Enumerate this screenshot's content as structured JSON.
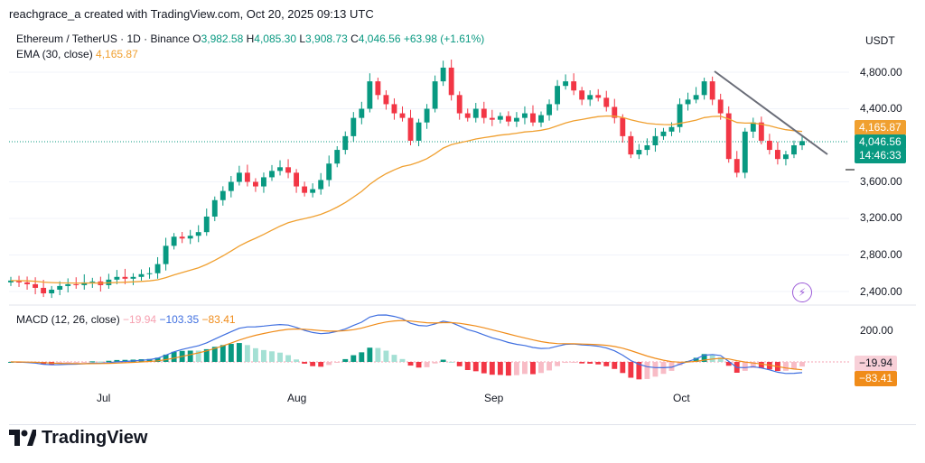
{
  "header": {
    "creator": "reachgrace_a created with TradingView.com, Oct 20, 2025 09:13 UTC",
    "symbol": "Ethereum / TetherUS · 1D · Binance",
    "open_label": "O",
    "open": "3,982.58",
    "high_label": "H",
    "high": "4,085.30",
    "low_label": "L",
    "low": "3,908.73",
    "close_label": "C",
    "close": "4,046.56",
    "change": "+63.98 (+1.61%)",
    "ema_label": "EMA (30, close)",
    "ema_value": "4,165.87",
    "unit": "USDT"
  },
  "price_tags": {
    "ema": "4,165.87",
    "price": "4,046.56",
    "countdown": "14:46:33"
  },
  "macd": {
    "label": "MACD (12, 26, close)",
    "hist": "−19.94",
    "macd": "−103.35",
    "signal": "−83.41",
    "tick_200": "200.00",
    "tag_hist": "−19.94",
    "tag_signal": "−83.41"
  },
  "brand": {
    "name": "TradingView"
  },
  "colors": {
    "up": "#089981",
    "down": "#f23645",
    "ema": "#f0a030",
    "macd": "#3f6fe0",
    "signal": "#f08c1a",
    "trend": "#6a6d78"
  },
  "chart_data": {
    "type": "candlestick",
    "price_axis": {
      "ticks": [
        4800,
        4400,
        3600,
        3200,
        2800,
        2400
      ],
      "tick_labels": [
        "4,800.00",
        "4,400.00",
        "3,600.00",
        "3,200.00",
        "2,800.00",
        "2,400.00"
      ]
    },
    "time_axis": {
      "labels": [
        "Jul",
        "Aug",
        "Sep",
        "Oct"
      ]
    },
    "candles_close": [
      2520,
      2500,
      2480,
      2440,
      2380,
      2420,
      2460,
      2480,
      2470,
      2500,
      2510,
      2470,
      2530,
      2560,
      2540,
      2560,
      2590,
      2600,
      2700,
      2900,
      3000,
      2980,
      3010,
      3050,
      3220,
      3400,
      3500,
      3600,
      3700,
      3600,
      3550,
      3650,
      3720,
      3760,
      3700,
      3550,
      3480,
      3520,
      3620,
      3800,
      3950,
      4100,
      4300,
      4400,
      4700,
      4550,
      4450,
      4350,
      4300,
      4050,
      4250,
      4400,
      4700,
      4850,
      4550,
      4350,
      4300,
      4400,
      4300,
      4280,
      4320,
      4260,
      4300,
      4350,
      4250,
      4330,
      4450,
      4650,
      4700,
      4600,
      4500,
      4550,
      4520,
      4420,
      4300,
      4100,
      3900,
      3950,
      4000,
      4100,
      4150,
      4200,
      4450,
      4500,
      4550,
      4700,
      4500,
      4350,
      3850,
      3700,
      4150,
      4250,
      4050,
      3950,
      3850,
      3900,
      4000,
      4046.56
    ],
    "ema30": 4165.87,
    "macd_panel": {
      "macd": -103.35,
      "signal": -83.41,
      "histogram": -19.94
    }
  }
}
